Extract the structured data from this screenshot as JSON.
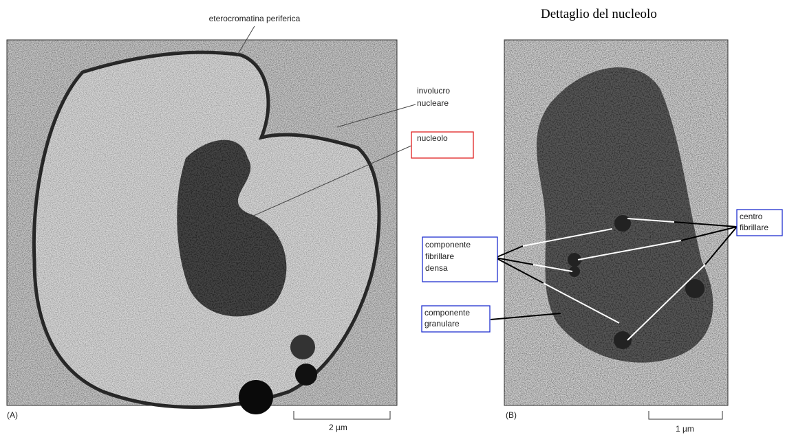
{
  "header": {
    "title": "Dettaglio del nucleolo"
  },
  "panel_a": {
    "label": "(A)",
    "scale_bar": "2 µm",
    "annotations": {
      "heterochromatin": "eterocromatina periferica",
      "envelope": [
        "involucro",
        "nucleare"
      ],
      "nucleolus": "nucleolo"
    }
  },
  "panel_b": {
    "label": "(B)",
    "scale_bar": "1 µm",
    "annotations": {
      "dense_fibrillar": [
        "componente",
        "fibrillare",
        "densa"
      ],
      "granular": [
        "componente",
        "granulare"
      ],
      "fibrillar_center": [
        "centro",
        "fibrillare"
      ]
    }
  }
}
